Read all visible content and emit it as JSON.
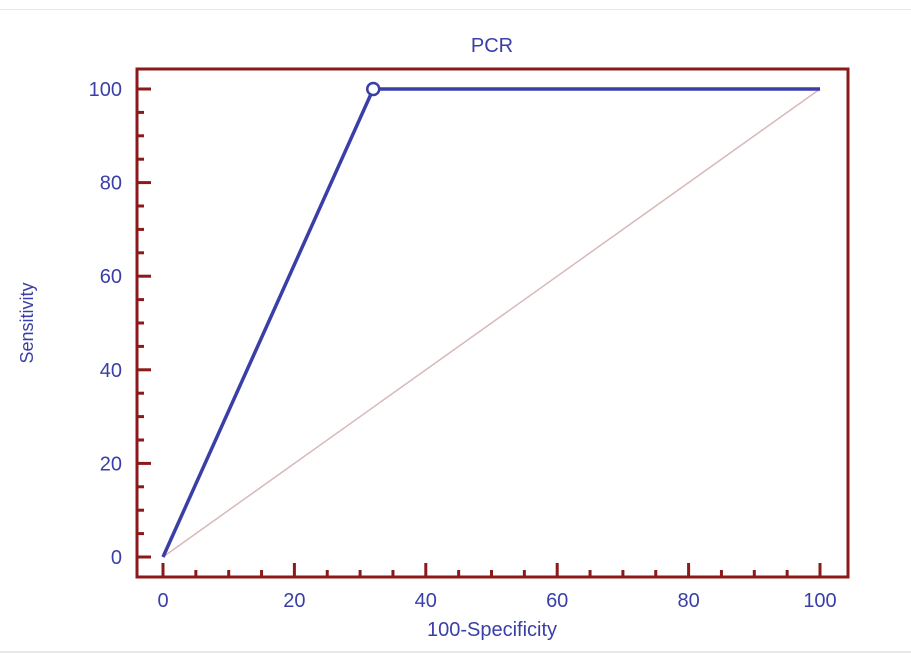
{
  "chart_data": {
    "type": "line",
    "title": "PCR",
    "xlabel": "100-Specificity",
    "ylabel": "Sensitivity",
    "xlim": [
      0,
      100
    ],
    "ylim": [
      0,
      100
    ],
    "x_ticks": [
      "0",
      "20",
      "40",
      "60",
      "80",
      "100"
    ],
    "y_ticks": [
      "0",
      "20",
      "40",
      "60",
      "80",
      "100"
    ],
    "series": [
      {
        "x": [
          0,
          32,
          100
        ],
        "y": [
          0,
          100,
          100
        ],
        "color": "#3a3fa8",
        "marker_at_index": 1
      }
    ],
    "reference_line": {
      "x": [
        0,
        100
      ],
      "y": [
        0,
        100
      ],
      "color": "#d9b8b8"
    },
    "grid": false,
    "legend": "none",
    "colors": {
      "frame": "#8b1a1a",
      "text": "#3a3fa8"
    }
  }
}
